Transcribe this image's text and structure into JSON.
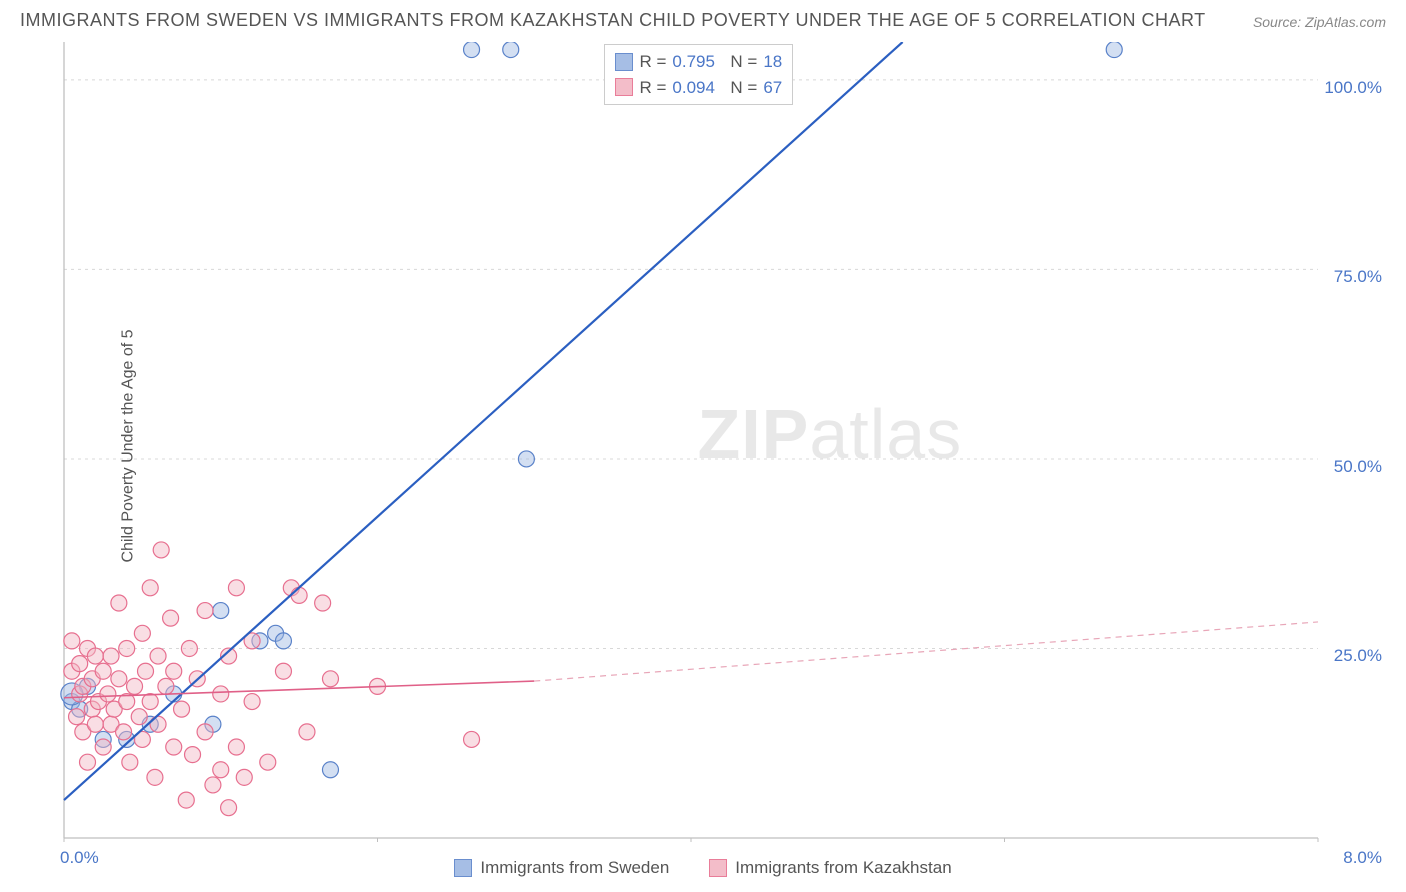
{
  "title": "IMMIGRANTS FROM SWEDEN VS IMMIGRANTS FROM KAZAKHSTAN CHILD POVERTY UNDER THE AGE OF 5 CORRELATION CHART",
  "source": "Source: ZipAtlas.com",
  "y_axis_label": "Child Poverty Under the Age of 5",
  "watermark_bold": "ZIP",
  "watermark_light": "atlas",
  "chart": {
    "type": "scatter",
    "xlim": [
      0,
      8
    ],
    "ylim": [
      0,
      105
    ],
    "x_ticks": [
      0,
      2,
      4,
      6,
      8
    ],
    "x_tick_labels": [
      "0.0%",
      "",
      "",
      "",
      "8.0%"
    ],
    "y_ticks": [
      25,
      50,
      75,
      100
    ],
    "y_tick_labels": [
      "25.0%",
      "50.0%",
      "75.0%",
      "100.0%"
    ],
    "grid_color": "#d8d8d8",
    "axis_color": "#bfbfbf",
    "background_color": "#ffffff",
    "marker_radius": 8,
    "marker_stroke_width": 1.2,
    "line_width_solid": 2.2,
    "line_width_thin": 1.6,
    "series": [
      {
        "name": "Immigrants from Sweden",
        "fill": "#9db7e3",
        "stroke": "#5a82c9",
        "fill_opacity": 0.45,
        "r_value": "0.795",
        "n_value": "18",
        "trend": {
          "x1": 0,
          "y1": 5,
          "x2": 5.35,
          "y2": 105,
          "color": "#2b5fc1"
        },
        "points": [
          {
            "x": 0.05,
            "y": 18
          },
          {
            "x": 0.1,
            "y": 17
          },
          {
            "x": 0.15,
            "y": 20
          },
          {
            "x": 0.25,
            "y": 13
          },
          {
            "x": 0.4,
            "y": 13
          },
          {
            "x": 0.55,
            "y": 15
          },
          {
            "x": 0.7,
            "y": 19
          },
          {
            "x": 0.95,
            "y": 15
          },
          {
            "x": 1.0,
            "y": 30
          },
          {
            "x": 1.25,
            "y": 26
          },
          {
            "x": 1.35,
            "y": 27
          },
          {
            "x": 1.4,
            "y": 26
          },
          {
            "x": 1.7,
            "y": 9
          },
          {
            "x": 2.6,
            "y": 104
          },
          {
            "x": 2.85,
            "y": 104
          },
          {
            "x": 2.95,
            "y": 50
          },
          {
            "x": 6.7,
            "y": 104
          },
          {
            "x": 0.05,
            "y": 19,
            "r": 11
          }
        ]
      },
      {
        "name": "Immigrants from Kazakhstan",
        "fill": "#f2b6c4",
        "stroke": "#e76f8f",
        "fill_opacity": 0.45,
        "r_value": "0.094",
        "n_value": "67",
        "trend_solid": {
          "x1": 0,
          "y1": 18.5,
          "x2": 3.0,
          "y2": 20.7,
          "color": "#e06088"
        },
        "trend_dashed": {
          "x1": 3.0,
          "y1": 20.7,
          "x2": 8.0,
          "y2": 28.5,
          "color": "#e8a6b8"
        },
        "points": [
          {
            "x": 0.05,
            "y": 22
          },
          {
            "x": 0.05,
            "y": 26
          },
          {
            "x": 0.08,
            "y": 16
          },
          {
            "x": 0.1,
            "y": 19
          },
          {
            "x": 0.1,
            "y": 23
          },
          {
            "x": 0.12,
            "y": 14
          },
          {
            "x": 0.12,
            "y": 20
          },
          {
            "x": 0.15,
            "y": 25
          },
          {
            "x": 0.15,
            "y": 10
          },
          {
            "x": 0.18,
            "y": 17
          },
          {
            "x": 0.18,
            "y": 21
          },
          {
            "x": 0.2,
            "y": 24
          },
          {
            "x": 0.2,
            "y": 15
          },
          {
            "x": 0.22,
            "y": 18
          },
          {
            "x": 0.25,
            "y": 22
          },
          {
            "x": 0.25,
            "y": 12
          },
          {
            "x": 0.28,
            "y": 19
          },
          {
            "x": 0.3,
            "y": 15
          },
          {
            "x": 0.3,
            "y": 24
          },
          {
            "x": 0.32,
            "y": 17
          },
          {
            "x": 0.35,
            "y": 31
          },
          {
            "x": 0.35,
            "y": 21
          },
          {
            "x": 0.38,
            "y": 14
          },
          {
            "x": 0.4,
            "y": 18
          },
          {
            "x": 0.4,
            "y": 25
          },
          {
            "x": 0.42,
            "y": 10
          },
          {
            "x": 0.45,
            "y": 20
          },
          {
            "x": 0.48,
            "y": 16
          },
          {
            "x": 0.5,
            "y": 27
          },
          {
            "x": 0.5,
            "y": 13
          },
          {
            "x": 0.52,
            "y": 22
          },
          {
            "x": 0.55,
            "y": 33
          },
          {
            "x": 0.55,
            "y": 18
          },
          {
            "x": 0.58,
            "y": 8
          },
          {
            "x": 0.6,
            "y": 24
          },
          {
            "x": 0.6,
            "y": 15
          },
          {
            "x": 0.62,
            "y": 38
          },
          {
            "x": 0.65,
            "y": 20
          },
          {
            "x": 0.68,
            "y": 29
          },
          {
            "x": 0.7,
            "y": 12
          },
          {
            "x": 0.7,
            "y": 22
          },
          {
            "x": 0.75,
            "y": 17
          },
          {
            "x": 0.78,
            "y": 5
          },
          {
            "x": 0.8,
            "y": 25
          },
          {
            "x": 0.82,
            "y": 11
          },
          {
            "x": 0.85,
            "y": 21
          },
          {
            "x": 0.9,
            "y": 30
          },
          {
            "x": 0.9,
            "y": 14
          },
          {
            "x": 0.95,
            "y": 7
          },
          {
            "x": 1.0,
            "y": 19
          },
          {
            "x": 1.0,
            "y": 9
          },
          {
            "x": 1.05,
            "y": 24
          },
          {
            "x": 1.05,
            "y": 4
          },
          {
            "x": 1.1,
            "y": 12
          },
          {
            "x": 1.1,
            "y": 33
          },
          {
            "x": 1.15,
            "y": 8
          },
          {
            "x": 1.2,
            "y": 26
          },
          {
            "x": 1.2,
            "y": 18
          },
          {
            "x": 1.3,
            "y": 10
          },
          {
            "x": 1.4,
            "y": 22
          },
          {
            "x": 1.45,
            "y": 33
          },
          {
            "x": 1.5,
            "y": 32
          },
          {
            "x": 1.55,
            "y": 14
          },
          {
            "x": 1.65,
            "y": 31
          },
          {
            "x": 1.7,
            "y": 21
          },
          {
            "x": 2.0,
            "y": 20
          },
          {
            "x": 2.6,
            "y": 13
          }
        ]
      }
    ]
  },
  "legend_stats": {
    "r_label": "R =",
    "n_label": "N ="
  },
  "bottom_legend": [
    {
      "label": "Immigrants from Sweden",
      "fill": "#9db7e3",
      "stroke": "#5a82c9"
    },
    {
      "label": "Immigrants from Kazakhstan",
      "fill": "#f2b6c4",
      "stroke": "#e76f8f"
    }
  ]
}
